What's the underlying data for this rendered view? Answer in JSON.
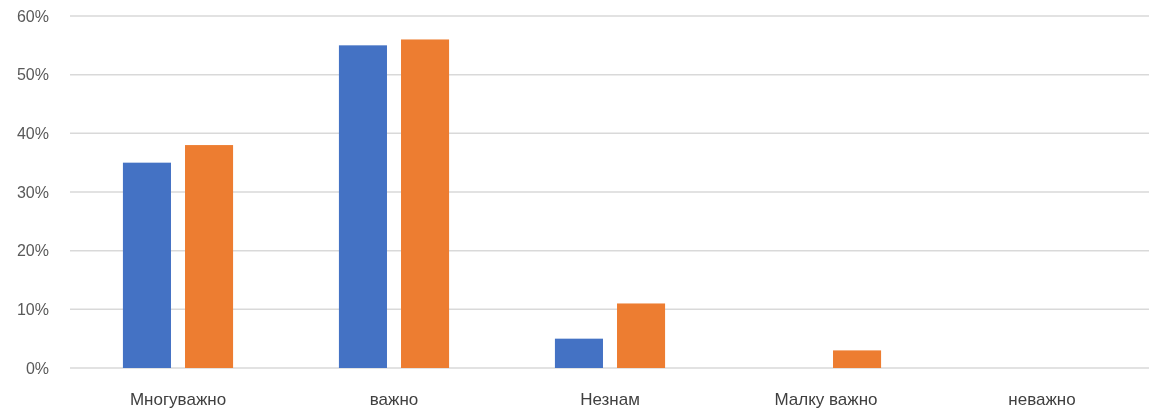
{
  "chart_data": {
    "type": "bar",
    "categories": [
      "Многуважно",
      "важно",
      "Незнам",
      "Малку важно",
      "неважно"
    ],
    "series": [
      {
        "color": "#4472c4",
        "values": [
          35,
          55,
          5,
          0,
          0
        ]
      },
      {
        "color": "#ed7d31",
        "values": [
          38,
          56,
          11,
          3,
          0
        ]
      }
    ],
    "ylim": [
      0,
      60
    ],
    "yticks": [
      {
        "value": 0,
        "label": "0%"
      },
      {
        "value": 10,
        "label": "10%"
      },
      {
        "value": 20,
        "label": "20%"
      },
      {
        "value": 30,
        "label": "30%"
      },
      {
        "value": 40,
        "label": "40%"
      },
      {
        "value": 50,
        "label": "50%"
      },
      {
        "value": 60,
        "label": "60%"
      }
    ],
    "grid": "y"
  }
}
